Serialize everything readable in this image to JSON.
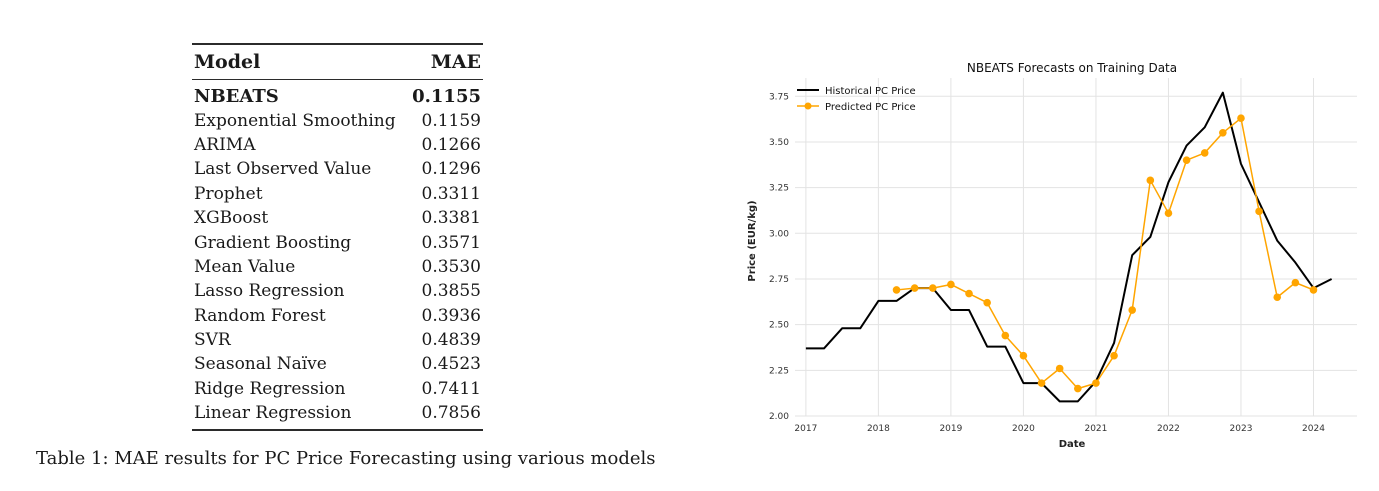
{
  "table": {
    "header": {
      "model": "Model",
      "mae": "MAE"
    },
    "rows": [
      {
        "model": "NBEATS",
        "mae": "0.1155"
      },
      {
        "model": "Exponential Smoothing",
        "mae": "0.1159"
      },
      {
        "model": "ARIMA",
        "mae": "0.1266"
      },
      {
        "model": "Last Observed Value",
        "mae": "0.1296"
      },
      {
        "model": "Prophet",
        "mae": "0.3311"
      },
      {
        "model": "XGBoost",
        "mae": "0.3381"
      },
      {
        "model": "Gradient Boosting",
        "mae": "0.3571"
      },
      {
        "model": "Mean Value",
        "mae": "0.3530"
      },
      {
        "model": "Lasso Regression",
        "mae": "0.3855"
      },
      {
        "model": "Random Forest",
        "mae": "0.3936"
      },
      {
        "model": "SVR",
        "mae": "0.4839"
      },
      {
        "model": "Seasonal Naïve",
        "mae": "0.4523"
      },
      {
        "model": "Ridge Regression",
        "mae": "0.7411"
      },
      {
        "model": "Linear Regression",
        "mae": "0.7856"
      }
    ],
    "caption": "Table 1: MAE results for PC Price Forecasting using various models"
  },
  "chart_data": {
    "type": "line",
    "title": "NBEATS Forecasts on Training Data",
    "xlabel": "Date",
    "ylabel": "Price (EUR/kg)",
    "xlim": [
      2016.85,
      2024.6
    ],
    "ylim": [
      2.0,
      3.85
    ],
    "x_ticks": [
      2017,
      2018,
      2019,
      2020,
      2021,
      2022,
      2023,
      2024
    ],
    "y_ticks": [
      2.0,
      2.25,
      2.5,
      2.75,
      3.0,
      3.25,
      3.5,
      3.75
    ],
    "y_tick_labels": [
      "2.00",
      "2.25",
      "2.50",
      "2.75",
      "3.00",
      "3.25",
      "3.50",
      "3.75"
    ],
    "grid": true,
    "legend_position": "top-left",
    "series": [
      {
        "name": "Historical PC Price",
        "color": "#000000",
        "x": [
          2017.0,
          2017.25,
          2017.5,
          2017.75,
          2018.0,
          2018.25,
          2018.5,
          2018.75,
          2019.0,
          2019.25,
          2019.5,
          2019.75,
          2020.0,
          2020.25,
          2020.5,
          2020.75,
          2021.0,
          2021.25,
          2021.5,
          2021.75,
          2022.0,
          2022.25,
          2022.5,
          2022.75,
          2023.0,
          2023.25,
          2023.5,
          2023.75,
          2024.0,
          2024.25
        ],
        "y": [
          2.37,
          2.37,
          2.48,
          2.48,
          2.63,
          2.63,
          2.7,
          2.7,
          2.58,
          2.58,
          2.38,
          2.38,
          2.18,
          2.18,
          2.08,
          2.08,
          2.19,
          2.4,
          2.88,
          2.98,
          3.28,
          3.48,
          3.58,
          3.77,
          3.38,
          3.17,
          2.96,
          2.84,
          2.7,
          2.75
        ]
      },
      {
        "name": "Predicted PC Price",
        "color": "#FFA500",
        "x": [
          2018.25,
          2018.5,
          2018.75,
          2019.0,
          2019.25,
          2019.5,
          2019.75,
          2020.0,
          2020.25,
          2020.5,
          2020.75,
          2021.0,
          2021.25,
          2021.5,
          2021.75,
          2022.0,
          2022.25,
          2022.5,
          2022.75,
          2023.0,
          2023.25,
          2023.5,
          2023.75,
          2024.0
        ],
        "y": [
          2.69,
          2.7,
          2.7,
          2.72,
          2.67,
          2.62,
          2.44,
          2.33,
          2.18,
          2.26,
          2.15,
          2.18,
          2.33,
          2.58,
          3.29,
          3.11,
          3.4,
          3.44,
          3.55,
          3.63,
          3.12,
          2.65,
          2.73,
          2.69
        ]
      }
    ]
  }
}
